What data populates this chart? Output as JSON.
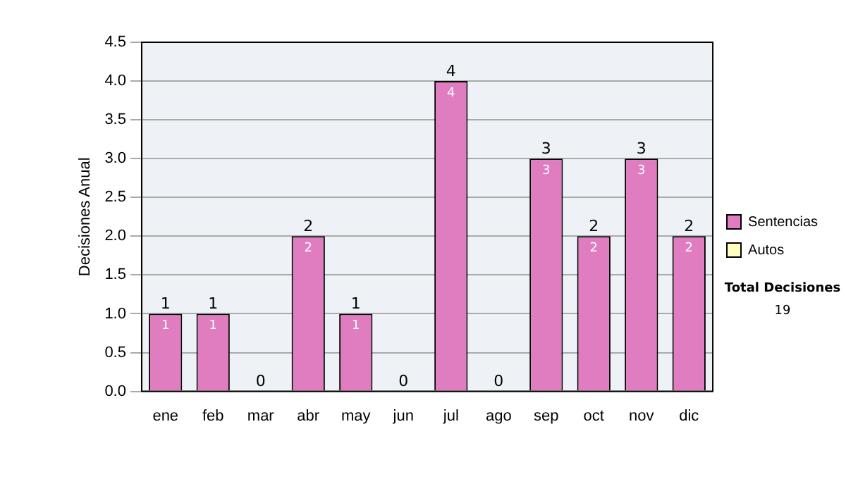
{
  "chart_data": {
    "type": "bar",
    "stacked": true,
    "ylabel": "Decisiones Anual",
    "categories": [
      "ene",
      "feb",
      "mar",
      "abr",
      "may",
      "jun",
      "jul",
      "ago",
      "sep",
      "oct",
      "nov",
      "dic"
    ],
    "series": [
      {
        "name": "Sentencias",
        "color": "#e07cc0",
        "values": [
          1,
          1,
          0,
          2,
          1,
          0,
          4,
          0,
          3,
          2,
          3,
          2
        ],
        "value_labels": [
          "1",
          "1",
          null,
          "2",
          "1",
          null,
          "4",
          null,
          "3",
          "2",
          "3",
          "2"
        ]
      },
      {
        "name": "Autos",
        "color": "#ffffc0",
        "values": [
          0,
          0,
          0,
          0,
          0,
          0,
          0,
          0,
          0,
          0,
          0,
          0
        ]
      }
    ],
    "totals": [
      "1",
      "1",
      "0",
      "2",
      "1",
      "0",
      "4",
      "0",
      "3",
      "2",
      "3",
      "2"
    ],
    "ylim": [
      0,
      4.5
    ],
    "yticks": [
      {
        "value": 0,
        "label": "0.0"
      },
      {
        "value": 0.5,
        "label": "0.5"
      },
      {
        "value": 1,
        "label": "1.0"
      },
      {
        "value": 1.5,
        "label": "1.5"
      },
      {
        "value": 2,
        "label": "2.0"
      },
      {
        "value": 2.5,
        "label": "2.5"
      },
      {
        "value": 3,
        "label": "3.0"
      },
      {
        "value": 3.5,
        "label": "3.5"
      },
      {
        "value": 4,
        "label": "4.0"
      },
      {
        "value": 4.5,
        "label": "4.5"
      }
    ],
    "grid": "y",
    "legend": "right",
    "annotations": [
      "Total Decisiones",
      "19"
    ]
  }
}
